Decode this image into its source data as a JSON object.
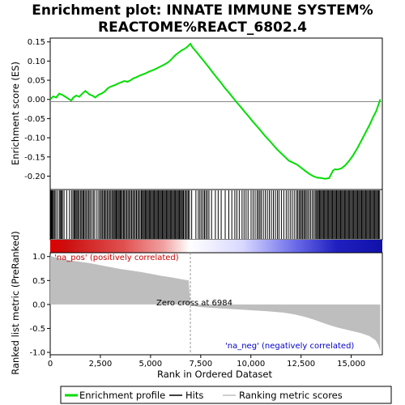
{
  "title_lines": [
    "Enrichment plot: INNATE IMMUNE SYSTEM%",
    "REACTOME%REACT_6802.4"
  ],
  "chart_data": [
    {
      "panel": "enrichment",
      "type": "line",
      "ylabel": "Enrichment score (ES)",
      "ylim": [
        -0.235,
        0.16
      ],
      "yticks": [
        0.15,
        0.1,
        0.05,
        0.0,
        -0.05,
        -0.1,
        -0.15,
        -0.2
      ],
      "ytick_labels": [
        "0.15",
        "0.10",
        "0.05",
        "0.00",
        "-0.05",
        "-0.10",
        "-0.15",
        "-0.20"
      ],
      "series": [
        {
          "name": "Enrichment profile",
          "color": "#00dd00",
          "x": [
            0,
            150,
            300,
            450,
            600,
            750,
            900,
            1050,
            1150,
            1300,
            1450,
            1600,
            1750,
            1850,
            1950,
            2100,
            2250,
            2400,
            2550,
            2700,
            2850,
            2950,
            3100,
            3250,
            3400,
            3550,
            3700,
            3850,
            4000,
            4150,
            4300,
            4450,
            4600,
            4750,
            4900,
            5050,
            5200,
            5350,
            5500,
            5650,
            5800,
            5950,
            6100,
            6250,
            6400,
            6550,
            6700,
            6850,
            6984,
            7100,
            7300,
            7500,
            7700,
            7900,
            8100,
            8300,
            8500,
            8700,
            8900,
            9100,
            9300,
            9500,
            9700,
            9900,
            10100,
            10300,
            10500,
            10700,
            10900,
            11100,
            11300,
            11500,
            11700,
            11900,
            12100,
            12300,
            12500,
            12700,
            12900,
            13100,
            13300,
            13500,
            13700,
            13900,
            14000,
            14100,
            14200,
            14300,
            14500,
            14700,
            14900,
            15100,
            15300,
            15500,
            15700,
            15900,
            16100,
            16250,
            16350,
            16450
          ],
          "y": [
            0.0,
            0.008,
            0.005,
            0.015,
            0.012,
            0.007,
            0.002,
            -0.003,
            0.005,
            0.01,
            0.007,
            0.015,
            0.022,
            0.018,
            0.013,
            0.01,
            0.005,
            0.012,
            0.015,
            0.02,
            0.028,
            0.032,
            0.035,
            0.038,
            0.042,
            0.045,
            0.048,
            0.046,
            0.05,
            0.055,
            0.058,
            0.062,
            0.065,
            0.068,
            0.072,
            0.075,
            0.078,
            0.082,
            0.086,
            0.09,
            0.094,
            0.1,
            0.108,
            0.116,
            0.122,
            0.128,
            0.132,
            0.138,
            0.145,
            0.135,
            0.123,
            0.11,
            0.097,
            0.084,
            0.07,
            0.057,
            0.044,
            0.03,
            0.018,
            0.005,
            -0.008,
            -0.02,
            -0.033,
            -0.045,
            -0.058,
            -0.07,
            -0.082,
            -0.095,
            -0.106,
            -0.118,
            -0.13,
            -0.14,
            -0.15,
            -0.16,
            -0.165,
            -0.17,
            -0.178,
            -0.186,
            -0.194,
            -0.2,
            -0.204,
            -0.205,
            -0.207,
            -0.205,
            -0.195,
            -0.185,
            -0.182,
            -0.183,
            -0.18,
            -0.172,
            -0.16,
            -0.145,
            -0.128,
            -0.108,
            -0.088,
            -0.068,
            -0.045,
            -0.03,
            -0.015,
            0.0
          ]
        }
      ]
    },
    {
      "panel": "hits",
      "type": "scatter",
      "marker": "vertical line",
      "series_name": "Hits",
      "hit_positions": [
        40,
        80,
        120,
        170,
        230,
        290,
        380,
        470,
        520,
        560,
        610,
        690,
        820,
        960,
        1060,
        1130,
        1190,
        1240,
        1290,
        1340,
        1400,
        1450,
        1520,
        1570,
        1630,
        1680,
        1740,
        1800,
        1870,
        1930,
        1990,
        2070,
        2150,
        2220,
        2330,
        2420,
        2490,
        2550,
        2610,
        2670,
        2720,
        2780,
        2840,
        2900,
        2960,
        3020,
        3080,
        3140,
        3190,
        3240,
        3290,
        3340,
        3390,
        3440,
        3490,
        3540,
        3590,
        3650,
        3700,
        3760,
        3820,
        3880,
        3940,
        4000,
        4060,
        4120,
        4180,
        4240,
        4300,
        4360,
        4420,
        4480,
        4540,
        4590,
        4640,
        4690,
        4740,
        4790,
        4840,
        4890,
        4940,
        4990,
        5040,
        5090,
        5140,
        5190,
        5240,
        5290,
        5340,
        5390,
        5440,
        5490,
        5540,
        5590,
        5640,
        5690,
        5740,
        5790,
        5840,
        5890,
        5940,
        5990,
        6040,
        6090,
        6140,
        6190,
        6240,
        6290,
        6340,
        6390,
        6440,
        6490,
        6540,
        6590,
        6640,
        6700,
        6760,
        6820,
        6880,
        6940,
        7050,
        7260,
        7380,
        7460,
        7540,
        7620,
        7690,
        7760,
        7830,
        7910,
        8040,
        8230,
        8370,
        8520,
        8720,
        8900,
        9050,
        9200,
        9300,
        9420,
        9560,
        9660,
        9760,
        9860,
        10010,
        10110,
        10210,
        10310,
        10380,
        10450,
        10520,
        10620,
        10720,
        10820,
        10920,
        11020,
        11120,
        11220,
        11320,
        11400,
        11520,
        11640,
        11760,
        11860,
        11960,
        12060,
        12160,
        12260,
        12330,
        12400,
        12460,
        12520,
        12580,
        12640,
        12700,
        12760,
        12830,
        12900,
        12980,
        13060,
        13140,
        13210,
        13270,
        13320,
        13370,
        13420,
        13470,
        13520,
        13570,
        13620,
        13670,
        13720,
        13770,
        13820,
        13870,
        13920,
        13970,
        14020,
        14070,
        14120,
        14170,
        14220,
        14270,
        14320,
        14370,
        14420,
        14470,
        14520,
        14570,
        14620,
        14670,
        14720,
        14770,
        14820,
        14870,
        14920,
        14970,
        15020,
        15070,
        15120,
        15170,
        15220,
        15270,
        15320,
        15370,
        15420,
        15470,
        15520,
        15570,
        15620,
        15670,
        15720,
        15770,
        15820,
        15870,
        15920,
        15970,
        16020,
        16070,
        16120,
        16170,
        16220,
        16270,
        16320,
        16370,
        16420
      ]
    },
    {
      "panel": "ranked_list",
      "type": "area",
      "ylabel": "Ranked list metric (PreRanked)",
      "xlabel": "Rank in Ordered Dataset",
      "series_name": "Ranking metric scores",
      "color": "#bebebe",
      "xlim": [
        0,
        16550
      ],
      "ylim": [
        -1.05,
        1.08
      ],
      "yticks": [
        1.0,
        0.5,
        0.0,
        -0.5,
        -1.0
      ],
      "ytick_labels": [
        "1.0",
        "0.5",
        "0.0",
        "-0.5",
        "-1.0"
      ],
      "xticks": [
        0,
        2500,
        5000,
        7500,
        10000,
        12500,
        15000
      ],
      "xtick_labels": [
        "0",
        "2,500",
        "5,000",
        "7,500",
        "10,000",
        "12,500",
        "15,000"
      ],
      "x": [
        0,
        100,
        300,
        600,
        1000,
        1500,
        2000,
        2500,
        3000,
        3500,
        4000,
        4500,
        5000,
        5500,
        6000,
        6500,
        6900,
        6984,
        7050,
        7600,
        8400,
        9200,
        10000,
        10800,
        11600,
        12200,
        12700,
        13100,
        13500,
        13900,
        14300,
        14700,
        15100,
        15500,
        15900,
        16200,
        16350,
        16450
      ],
      "values": [
        1.02,
        1.0,
        0.98,
        0.95,
        0.92,
        0.89,
        0.86,
        0.82,
        0.78,
        0.74,
        0.71,
        0.68,
        0.64,
        0.6,
        0.57,
        0.53,
        0.5,
        0.0,
        -0.03,
        -0.06,
        -0.08,
        -0.1,
        -0.12,
        -0.14,
        -0.17,
        -0.21,
        -0.26,
        -0.31,
        -0.37,
        -0.43,
        -0.48,
        -0.52,
        -0.56,
        -0.6,
        -0.66,
        -0.74,
        -0.84,
        -0.98
      ],
      "zero_cross": 6984,
      "annotations": {
        "pos": "'na_pos' (positively correlated)",
        "neg": "'na_neg' (negatively correlated)",
        "zero": "Zero cross at 6984"
      },
      "annotation_colors": {
        "pos": "#cc0000",
        "neg": "#0000cc",
        "zero": "#000000"
      }
    }
  ],
  "colorbar": {
    "left_color": "#dd0000",
    "mid_color": "#ffffff",
    "right_color": "#1010aa"
  },
  "legend": {
    "items": [
      {
        "label": "Enrichment profile",
        "color": "#00dd00"
      },
      {
        "label": "Hits",
        "color": "#000000"
      },
      {
        "label": "Ranking metric scores",
        "color": "#bebebe"
      }
    ]
  }
}
